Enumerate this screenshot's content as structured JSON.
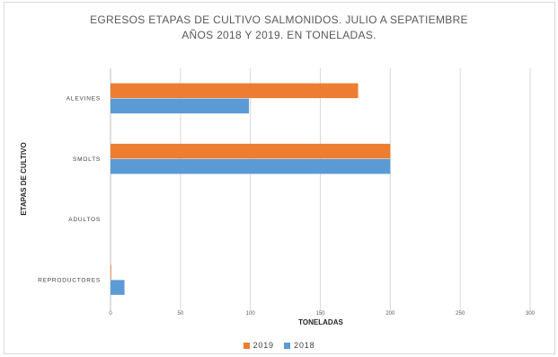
{
  "chart_data": {
    "type": "bar",
    "orientation": "horizontal",
    "title_lines": [
      "EGRESOS ETAPAS DE CULTIVO SALMONIDOS. JULIO A SEPATIEMBRE",
      "AÑOS 2018 Y 2019. EN TONELADAS."
    ],
    "xlabel": "TONELADAS",
    "ylabel": "ETAPAS DE CULTIVO",
    "categories": [
      "ALEVINES",
      "SMOLTS",
      "ADULTOS",
      "REPRODUCTORES"
    ],
    "series": [
      {
        "name": "2019",
        "color": "#ED7D31",
        "values": [
          177,
          200,
          0,
          0.5
        ]
      },
      {
        "name": "2018",
        "color": "#5B9BD5",
        "values": [
          99,
          200,
          0,
          10
        ]
      }
    ],
    "xticks": [
      "0",
      "50",
      "100",
      "150",
      "200",
      "250",
      "300"
    ],
    "xlim": [
      0,
      300
    ],
    "grid": true,
    "legend_position": "bottom"
  }
}
